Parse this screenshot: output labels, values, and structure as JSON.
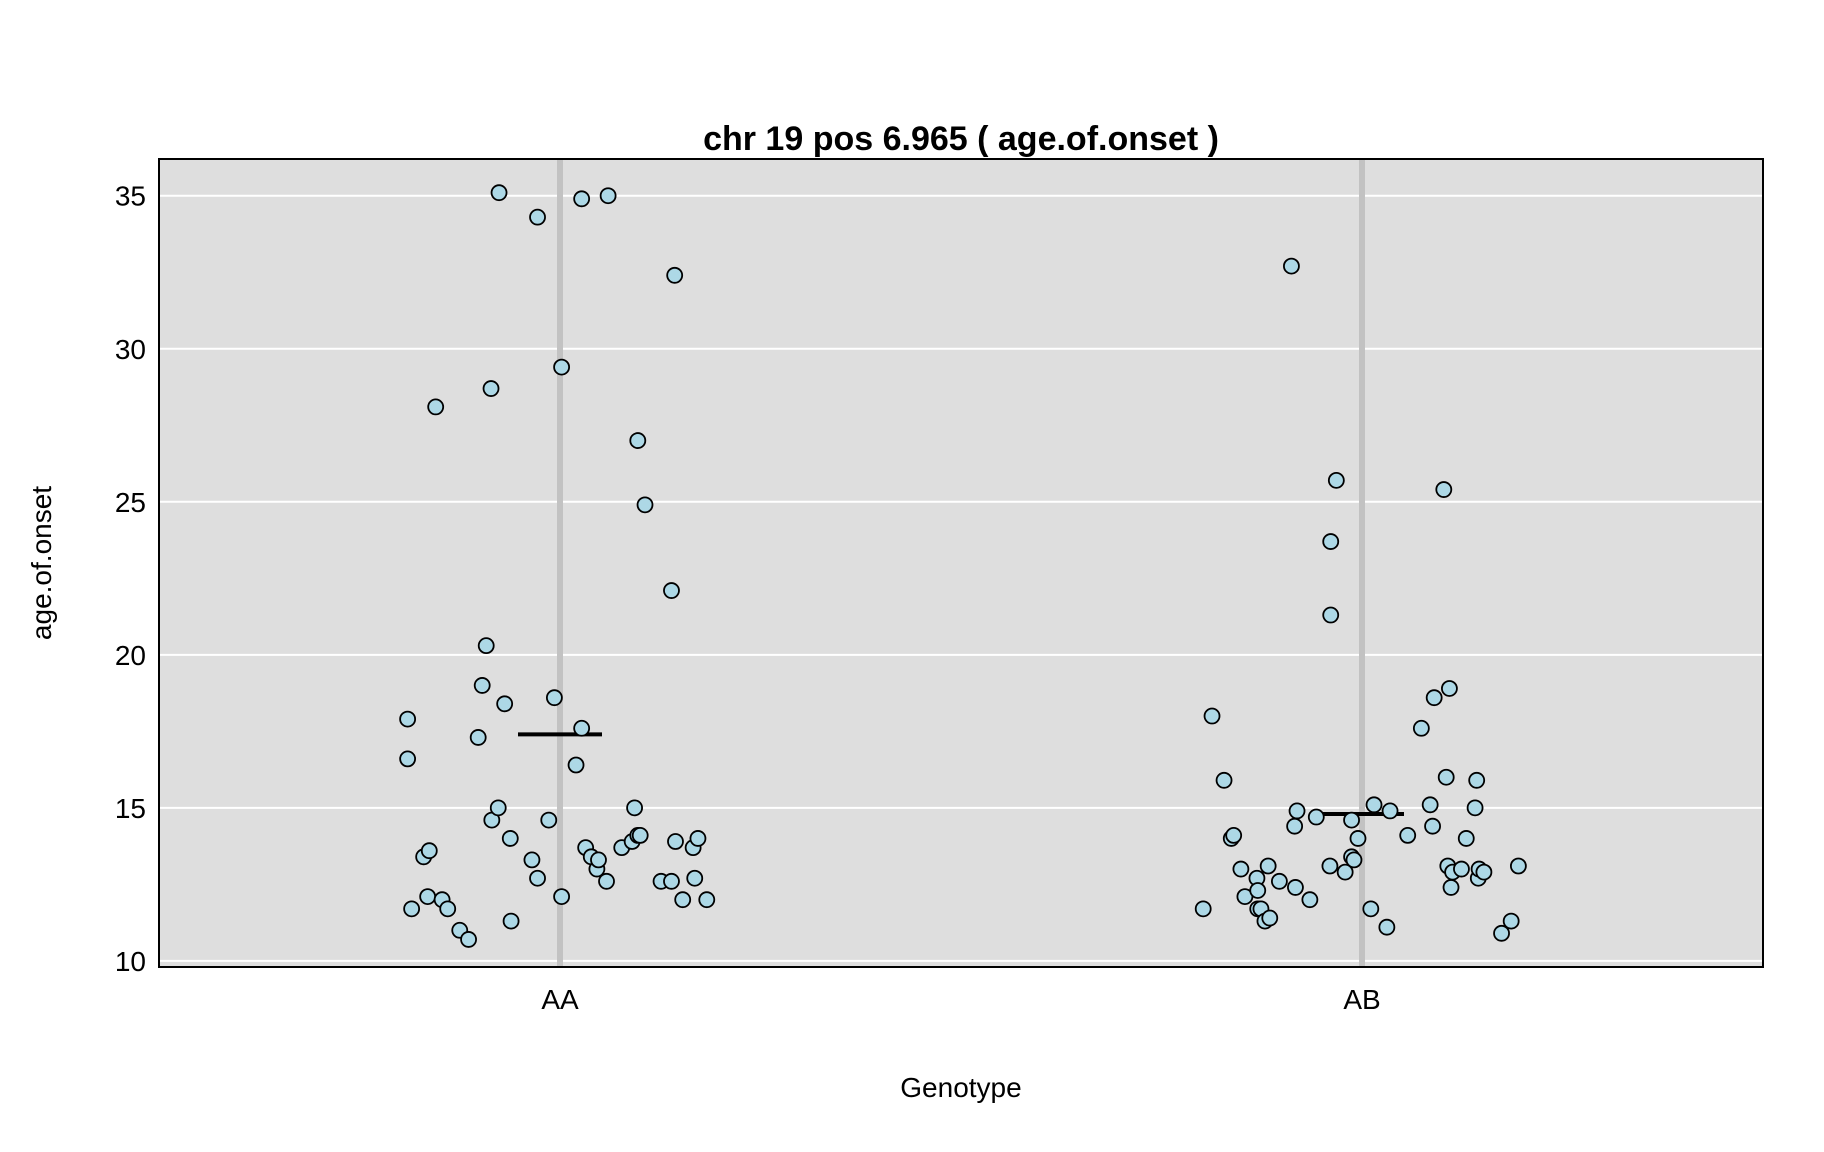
{
  "chart_data": {
    "type": "scatter",
    "title": "chr 19 pos 6.965 ( age.of.onset )",
    "xlabel": "Genotype",
    "ylabel": "age.of.onset",
    "categories": [
      "AA",
      "AB"
    ],
    "ylim": [
      9.8,
      36.2
    ],
    "yticks": [
      10,
      15,
      20,
      25,
      30,
      35
    ],
    "grid": true,
    "panel_color": "#dedede",
    "point_color": "#add8e6",
    "point_outline": "#000000",
    "groups": [
      {
        "category": "AA",
        "mean": 17.4,
        "points": [
          {
            "jitter": -0.19,
            "y": 17.9
          },
          {
            "jitter": -0.19,
            "y": 16.6
          },
          {
            "jitter": -0.185,
            "y": 11.7
          },
          {
            "jitter": -0.17,
            "y": 13.4
          },
          {
            "jitter": -0.165,
            "y": 12.1
          },
          {
            "jitter": -0.163,
            "y": 13.6
          },
          {
            "jitter": -0.155,
            "y": 28.1
          },
          {
            "jitter": -0.147,
            "y": 12.0
          },
          {
            "jitter": -0.14,
            "y": 11.7
          },
          {
            "jitter": -0.125,
            "y": 11.0
          },
          {
            "jitter": -0.114,
            "y": 10.7
          },
          {
            "jitter": -0.102,
            "y": 17.3
          },
          {
            "jitter": -0.097,
            "y": 19.0
          },
          {
            "jitter": -0.092,
            "y": 20.3
          },
          {
            "jitter": -0.086,
            "y": 28.7
          },
          {
            "jitter": -0.085,
            "y": 14.6
          },
          {
            "jitter": -0.077,
            "y": 15.0
          },
          {
            "jitter": -0.076,
            "y": 35.1
          },
          {
            "jitter": -0.069,
            "y": 18.4
          },
          {
            "jitter": -0.062,
            "y": 14.0
          },
          {
            "jitter": -0.061,
            "y": 11.3
          },
          {
            "jitter": -0.035,
            "y": 13.3
          },
          {
            "jitter": -0.028,
            "y": 34.3
          },
          {
            "jitter": -0.028,
            "y": 12.7
          },
          {
            "jitter": -0.014,
            "y": 14.6
          },
          {
            "jitter": -0.007,
            "y": 18.6
          },
          {
            "jitter": 0.002,
            "y": 12.1
          },
          {
            "jitter": 0.002,
            "y": 29.4
          },
          {
            "jitter": 0.02,
            "y": 16.4
          },
          {
            "jitter": 0.027,
            "y": 34.9
          },
          {
            "jitter": 0.027,
            "y": 17.6
          },
          {
            "jitter": 0.032,
            "y": 13.7
          },
          {
            "jitter": 0.039,
            "y": 13.4
          },
          {
            "jitter": 0.046,
            "y": 13.0
          },
          {
            "jitter": 0.048,
            "y": 13.3
          },
          {
            "jitter": 0.058,
            "y": 12.6
          },
          {
            "jitter": 0.06,
            "y": 35.0
          },
          {
            "jitter": 0.077,
            "y": 13.7
          },
          {
            "jitter": 0.09,
            "y": 13.9
          },
          {
            "jitter": 0.093,
            "y": 15.0
          },
          {
            "jitter": 0.097,
            "y": 27.0
          },
          {
            "jitter": 0.097,
            "y": 14.1
          },
          {
            "jitter": 0.1,
            "y": 14.1
          },
          {
            "jitter": 0.106,
            "y": 24.9
          },
          {
            "jitter": 0.126,
            "y": 12.6
          },
          {
            "jitter": 0.139,
            "y": 22.1
          },
          {
            "jitter": 0.139,
            "y": 12.6
          },
          {
            "jitter": 0.143,
            "y": 32.4
          },
          {
            "jitter": 0.144,
            "y": 13.9
          },
          {
            "jitter": 0.153,
            "y": 12.0
          },
          {
            "jitter": 0.166,
            "y": 13.7
          },
          {
            "jitter": 0.168,
            "y": 12.7
          },
          {
            "jitter": 0.172,
            "y": 14.0
          },
          {
            "jitter": 0.183,
            "y": 12.0
          }
        ]
      },
      {
        "category": "AB",
        "mean": 14.8,
        "points": [
          {
            "jitter": -0.198,
            "y": 11.7
          },
          {
            "jitter": -0.187,
            "y": 18.0
          },
          {
            "jitter": -0.172,
            "y": 15.9
          },
          {
            "jitter": -0.163,
            "y": 14.0
          },
          {
            "jitter": -0.16,
            "y": 14.1
          },
          {
            "jitter": -0.151,
            "y": 13.0
          },
          {
            "jitter": -0.146,
            "y": 12.1
          },
          {
            "jitter": -0.131,
            "y": 12.7
          },
          {
            "jitter": -0.13,
            "y": 12.3
          },
          {
            "jitter": -0.13,
            "y": 11.7
          },
          {
            "jitter": -0.126,
            "y": 11.7
          },
          {
            "jitter": -0.121,
            "y": 11.3
          },
          {
            "jitter": -0.117,
            "y": 13.1
          },
          {
            "jitter": -0.115,
            "y": 11.4
          },
          {
            "jitter": -0.103,
            "y": 12.6
          },
          {
            "jitter": -0.088,
            "y": 32.7
          },
          {
            "jitter": -0.084,
            "y": 14.4
          },
          {
            "jitter": -0.083,
            "y": 12.4
          },
          {
            "jitter": -0.081,
            "y": 14.9
          },
          {
            "jitter": -0.065,
            "y": 12.0
          },
          {
            "jitter": -0.057,
            "y": 14.7
          },
          {
            "jitter": -0.04,
            "y": 13.1
          },
          {
            "jitter": -0.039,
            "y": 23.7
          },
          {
            "jitter": -0.039,
            "y": 21.3
          },
          {
            "jitter": -0.032,
            "y": 25.7
          },
          {
            "jitter": -0.021,
            "y": 12.9
          },
          {
            "jitter": -0.013,
            "y": 14.6
          },
          {
            "jitter": -0.013,
            "y": 13.4
          },
          {
            "jitter": -0.01,
            "y": 13.3
          },
          {
            "jitter": -0.005,
            "y": 14.0
          },
          {
            "jitter": 0.011,
            "y": 11.7
          },
          {
            "jitter": 0.015,
            "y": 15.1
          },
          {
            "jitter": 0.031,
            "y": 11.1
          },
          {
            "jitter": 0.035,
            "y": 14.9
          },
          {
            "jitter": 0.057,
            "y": 14.1
          },
          {
            "jitter": 0.074,
            "y": 17.6
          },
          {
            "jitter": 0.085,
            "y": 15.1
          },
          {
            "jitter": 0.088,
            "y": 14.4
          },
          {
            "jitter": 0.09,
            "y": 18.6
          },
          {
            "jitter": 0.102,
            "y": 25.4
          },
          {
            "jitter": 0.105,
            "y": 16.0
          },
          {
            "jitter": 0.107,
            "y": 13.1
          },
          {
            "jitter": 0.109,
            "y": 18.9
          },
          {
            "jitter": 0.111,
            "y": 12.4
          },
          {
            "jitter": 0.113,
            "y": 12.9
          },
          {
            "jitter": 0.124,
            "y": 13.0
          },
          {
            "jitter": 0.13,
            "y": 14.0
          },
          {
            "jitter": 0.141,
            "y": 15.0
          },
          {
            "jitter": 0.143,
            "y": 15.9
          },
          {
            "jitter": 0.145,
            "y": 12.7
          },
          {
            "jitter": 0.146,
            "y": 13.0
          },
          {
            "jitter": 0.152,
            "y": 12.9
          },
          {
            "jitter": 0.174,
            "y": 10.9
          },
          {
            "jitter": 0.186,
            "y": 11.3
          },
          {
            "jitter": 0.195,
            "y": 13.1
          }
        ]
      }
    ]
  }
}
